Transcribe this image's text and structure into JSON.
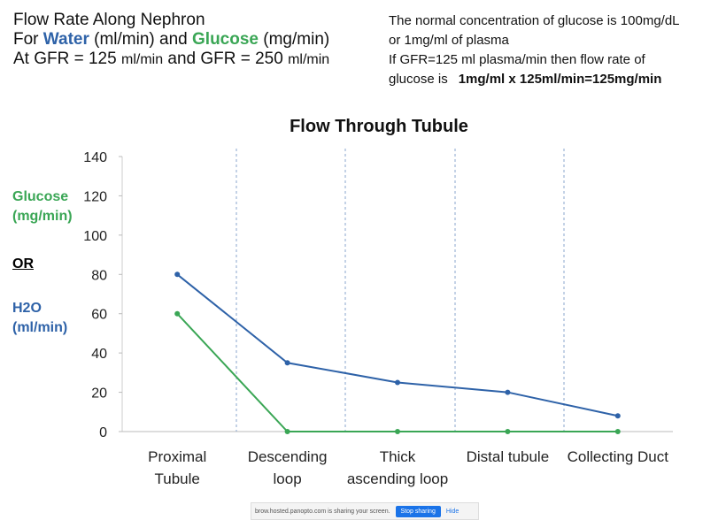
{
  "header": {
    "lines": [
      [
        {
          "text": "Flow Rate Along Nephron"
        }
      ],
      [
        {
          "text": "For "
        },
        {
          "text": "Water"
        },
        {
          "text": " (ml/min) and "
        },
        {
          "text": "Glucose"
        },
        {
          "text": " (mg/min)"
        }
      ],
      [
        {
          "text": "At GFR = 125 "
        },
        {
          "text": "ml/min"
        },
        {
          "text": " and GFR = 250 "
        },
        {
          "text": "ml/min"
        }
      ]
    ]
  },
  "note": {
    "lines": [
      "The normal concentration of glucose is 100mg/dL",
      "or 1mg/ml of plasma",
      "If GFR=125 ml plasma/min then flow rate of",
      "glucose is"
    ],
    "formula": "1mg/ml x 125ml/min=125mg/min"
  },
  "y_labels": [
    "Glucose (mg/min)",
    "OR",
    "H2O (ml/min)"
  ],
  "chart_data": {
    "type": "line",
    "title": "Flow Through Tubule",
    "categories": [
      "Proximal Tubule",
      "Descending loop",
      "Thick ascending loop",
      "Distal tubule",
      "Collecting Duct"
    ],
    "series": [
      {
        "name": "Water",
        "color": "#2e62a8",
        "values": [
          80,
          35,
          25,
          20,
          8
        ]
      },
      {
        "name": "Glucose",
        "color": "#3aa655",
        "values": [
          60,
          0,
          0,
          0,
          0
        ]
      }
    ],
    "ylim": [
      0,
      140
    ],
    "yticks": [
      0,
      20,
      40,
      60,
      80,
      100,
      120,
      140
    ]
  },
  "share_bar": {
    "message": "brow.hosted.panopto.com is sharing your screen.",
    "stop": "Stop sharing",
    "hide": "Hide"
  }
}
